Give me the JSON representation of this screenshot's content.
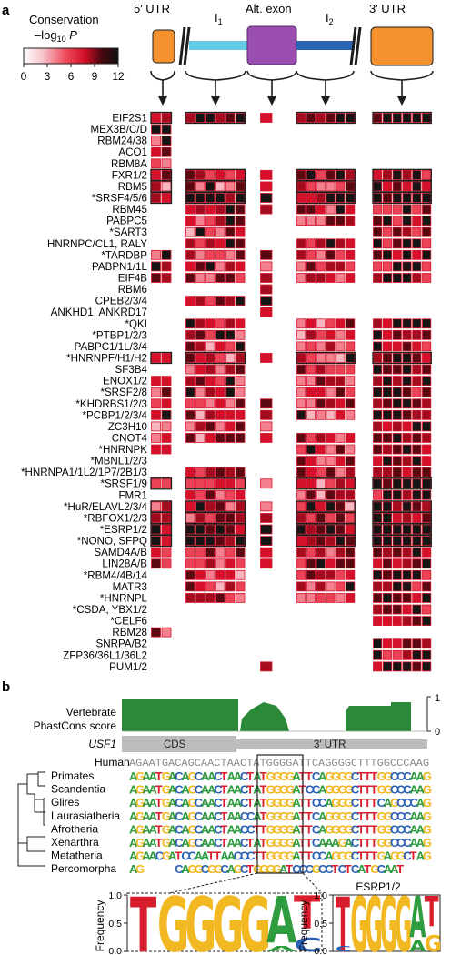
{
  "panel_a": {
    "letter": "a",
    "legend": {
      "title": "Conservation",
      "subtitle_main": "–log",
      "subtitle_sub": "10",
      "subtitle_tail": " P",
      "ticks": [
        "0",
        "3",
        "6",
        "9",
        "12"
      ],
      "colors": [
        "#ffffff",
        "#f7c8cf",
        "#ef5566",
        "#d8102a",
        "#5a0a12",
        "#101010"
      ]
    },
    "regions": {
      "utr5": "5′ UTR",
      "i1_main": "I",
      "i1_sub": "1",
      "alt_exon": "Alt. exon",
      "i2_main": "I",
      "i2_sub": "2",
      "utr3": "3′ UTR"
    },
    "region_colors": {
      "utr": "#f4922f",
      "alt_exon": "#9a4fb0",
      "intron1": "#63c9e4",
      "intron2": "#2c63b0"
    },
    "proteins": [
      "EIF2S1",
      "MEX3B/C/D",
      "RBM24/38",
      "ACO1",
      "RBM8A",
      "FXR1/2",
      "RBM5",
      "*SRSF4/5/6",
      "RBM45",
      "PABPC5",
      "*SART3",
      "HNRNPC/CL1, RALY",
      "*TARDBP",
      "PABPN1/1L",
      "EIF4B",
      "RBM6",
      "CPEB2/3/4",
      "ANKHD1, ANKRD17",
      "*QKI",
      "*PTBP1/2/3",
      "PABPC1/1L/3/4",
      "*HNRNPF/H1/H2",
      "SF3B4",
      "ENOX1/2",
      "*SRSF2/8",
      "*KHDRBS1/2/3",
      "*PCBP1/2/3/4",
      "ZC3H10",
      "CNOT4",
      "*HNRNPK",
      "*MBNL1/2/3",
      "*HNRNPA1/1L2/1P7/2B1/3",
      "*SRSF1/9",
      "FMR1",
      "*HuR/ELAVL2/3/4",
      "*RBFOX1/2/3",
      "*ESRP1/2",
      "*NONO, SFPQ",
      "SAMD4A/B",
      "LIN28A/B",
      "*RBM4/4B/14",
      "MATR3",
      "*HNRNPL",
      "*CSDA, YBX1/2",
      "*CELF6",
      "RBM28",
      "SNRPA/B2",
      "ZFP36/36L1/36L2",
      "PUM1/2"
    ]
  },
  "panel_b": {
    "letter": "b",
    "phastcons_label_1": "Vertebrate",
    "phastcons_label_2": "PhastCons score",
    "phastcons_ticks": [
      "1",
      "0"
    ],
    "phastcons_color": "#2a8a3a",
    "gene": "USF1",
    "cds_label": "CDS",
    "utr3_label": "3′ UTR",
    "human_label": "Human",
    "human_seq": "AGAATGACAGCAACTAACTATGGGGATTCAGGGGCTTTGGCCCAAG",
    "clades": [
      "Primates",
      "Scandentia",
      "Glires",
      "Laurasiatheria",
      "Afrotheria",
      "Xenarthra",
      "Metatheria",
      "Percomorpha"
    ],
    "alignment": [
      "AGAATGACAGCAACTAACTATGGGGATTCAGGGGCTTTGGCCCAAG",
      "AGAATGACAGCAACTAACTATGGGGATCCAGGGGCTTTGGCCCAAG",
      "AGAATGACAGCAACTAACTATGGGGATTCCAGGGCTTTCAGCCCAG",
      "AGAATGACAGCAACTAACCATGGGGATTCAGGGGCTTTGGCCCAAG",
      "AGAATGACAGCAACTAACCTTGGGGATTCAGGGGCTTTGGCCCAAG",
      "AGAATGACAGCAACTAACTATGGGGATTCAAAGACTTTGGCCCAAG",
      "AGAACGATCCAATTAACCCTTGGGGATTCCAGGGCTTTGAGGCTAG",
      "AG     CAGGCGGCAGCTGGGGATCCCGCCTCTCATGCAAT    "
    ],
    "logo_left_ylabel": "Frequency",
    "logo_left_ticks": [
      "1.0",
      "0.5",
      "0.0"
    ],
    "logo_left_letters": "TGGGGAT",
    "logo_right_title": "ESRP1/2",
    "logo_right_ylabel": "Frequency",
    "logo_right_ticks": [
      "1.0",
      "0.5",
      "0.0"
    ],
    "logo_right_letters": "TGGGGAT",
    "nucleotide_colors": {
      "A": "#2e9c3f",
      "C": "#2a5fb4",
      "G": "#f2b822",
      "T": "#d81e2c"
    }
  }
}
